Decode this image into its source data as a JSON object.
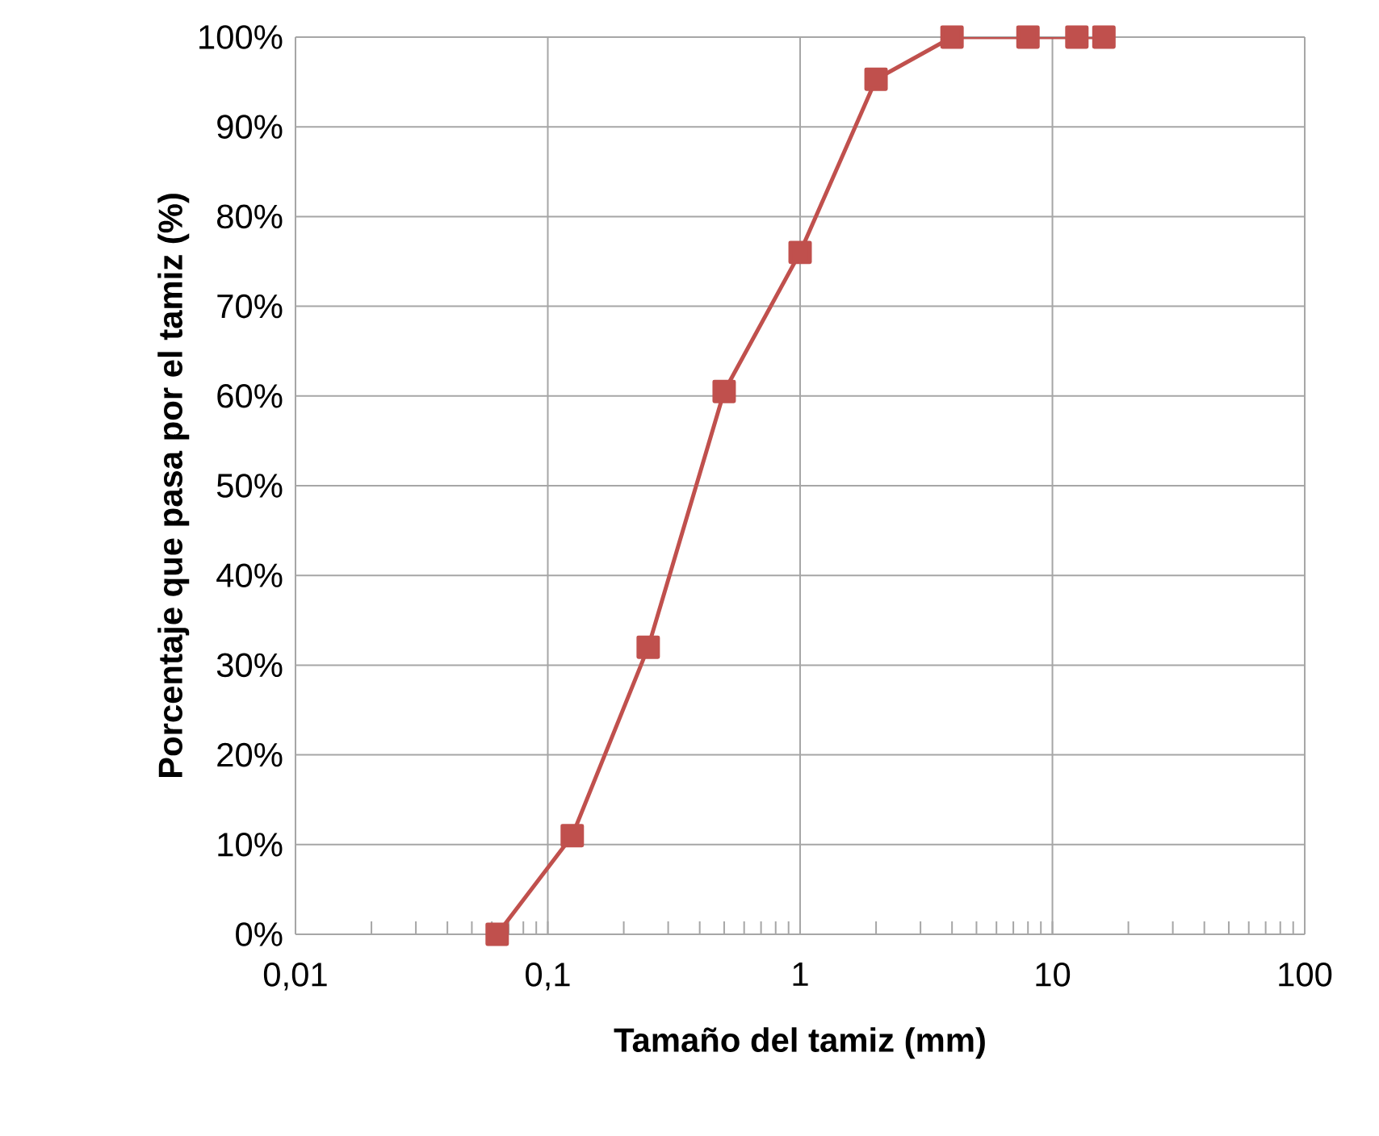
{
  "chart_data": {
    "type": "line",
    "xlabel": "Tamaño del tamiz (mm)",
    "ylabel": "Porcentaje que pasa por  el tamiz (%)",
    "log": "x",
    "grid": true,
    "marker": "square",
    "line_style": "solid",
    "xlim": [
      0.01,
      100
    ],
    "xticks": [
      {
        "value": 0.01,
        "label": "0,01"
      },
      {
        "value": 0.1,
        "label": "0,1"
      },
      1,
      10,
      100
    ],
    "ylim": [
      0,
      100
    ],
    "yticks": [
      {
        "value": 0,
        "label": "0%"
      },
      {
        "value": 10,
        "label": "10%"
      },
      {
        "value": 20,
        "label": "20%"
      },
      {
        "value": 30,
        "label": "30%"
      },
      {
        "value": 40,
        "label": "40%"
      },
      {
        "value": 50,
        "label": "50%"
      },
      {
        "value": 60,
        "label": "60%"
      },
      {
        "value": 70,
        "label": "70%"
      },
      {
        "value": 80,
        "label": "80%"
      },
      {
        "value": 90,
        "label": "90%"
      },
      {
        "value": 100,
        "label": "100%"
      }
    ],
    "x": [
      0.063,
      0.125,
      0.25,
      0.5,
      1,
      2,
      4,
      8,
      12.5,
      16
    ],
    "series": [
      {
        "color": "#c0504d",
        "values": [
          0,
          11,
          32,
          60.5,
          76,
          95.3,
          100,
          100,
          100,
          100
        ]
      }
    ]
  }
}
